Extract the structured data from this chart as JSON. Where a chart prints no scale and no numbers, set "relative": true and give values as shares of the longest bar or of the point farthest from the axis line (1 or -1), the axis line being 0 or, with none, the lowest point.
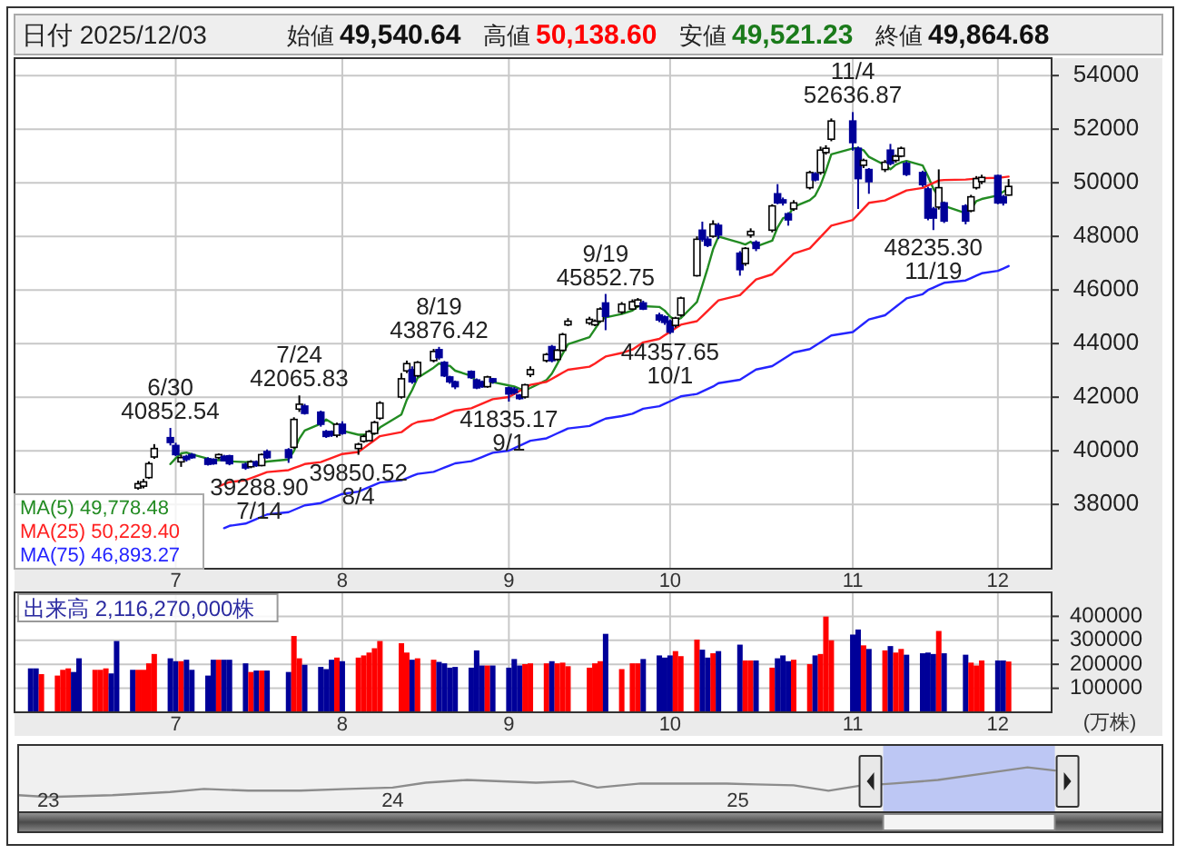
{
  "chart_data": [
    {
      "type": "candlestick",
      "title": "日付 2025/12/03",
      "annotations": [
        "始値 49,540.64",
        "高値 50,138.60",
        "安値 49,521.23",
        "終値 49,864.68",
        {
          "text": "6/30\n40852.54",
          "x": "2025-06-30",
          "y": 40852.54
        },
        {
          "text": "39288.90\n7/14",
          "x": "2025-07-14",
          "y": 39288.9
        },
        {
          "text": "7/24\n42065.83",
          "x": "2025-07-24",
          "y": 42065.83
        },
        {
          "text": "39850.52\n8/4",
          "x": "2025-08-04",
          "y": 39850.52
        },
        {
          "text": "8/19\n43876.42",
          "x": "2025-08-19",
          "y": 43876.42
        },
        {
          "text": "41835.17\n9/1",
          "x": "2025-09-01",
          "y": 41835.17
        },
        {
          "text": "9/19\n45852.75",
          "x": "2025-09-19",
          "y": 45852.75
        },
        {
          "text": "44357.65\n10/1",
          "x": "2025-10-01",
          "y": 44357.65
        },
        {
          "text": "11/4\n52636.87",
          "x": "2025-11-04",
          "y": 52636.87
        },
        {
          "text": "48235.30\n11/19",
          "x": "2025-11-19",
          "y": 48235.3
        }
      ],
      "x": [
        "2025-06-24",
        "2025-06-25",
        "2025-06-26",
        "2025-06-27",
        "2025-06-30",
        "2025-07-01",
        "2025-07-02",
        "2025-07-03",
        "2025-07-04",
        "2025-07-07",
        "2025-07-08",
        "2025-07-09",
        "2025-07-10",
        "2025-07-11",
        "2025-07-14",
        "2025-07-15",
        "2025-07-16",
        "2025-07-17",
        "2025-07-18",
        "2025-07-22",
        "2025-07-23",
        "2025-07-24",
        "2025-07-25",
        "2025-07-28",
        "2025-07-29",
        "2025-07-30",
        "2025-07-31",
        "2025-08-01",
        "2025-08-04",
        "2025-08-05",
        "2025-08-06",
        "2025-08-07",
        "2025-08-08",
        "2025-08-12",
        "2025-08-13",
        "2025-08-14",
        "2025-08-15",
        "2025-08-18",
        "2025-08-19",
        "2025-08-20",
        "2025-08-21",
        "2025-08-22",
        "2025-08-25",
        "2025-08-26",
        "2025-08-27",
        "2025-08-28",
        "2025-08-29",
        "2025-09-01",
        "2025-09-02",
        "2025-09-03",
        "2025-09-04",
        "2025-09-05",
        "2025-09-08",
        "2025-09-09",
        "2025-09-10",
        "2025-09-11",
        "2025-09-12",
        "2025-09-16",
        "2025-09-17",
        "2025-09-18",
        "2025-09-19",
        "2025-09-22",
        "2025-09-24",
        "2025-09-25",
        "2025-09-26",
        "2025-09-29",
        "2025-09-30",
        "2025-10-01",
        "2025-10-02",
        "2025-10-03",
        "2025-10-06",
        "2025-10-07",
        "2025-10-08",
        "2025-10-09",
        "2025-10-10",
        "2025-10-14",
        "2025-10-15",
        "2025-10-16",
        "2025-10-17",
        "2025-10-20",
        "2025-10-21",
        "2025-10-22",
        "2025-10-23",
        "2025-10-24",
        "2025-10-27",
        "2025-10-28",
        "2025-10-29",
        "2025-10-30",
        "2025-10-31",
        "2025-11-04",
        "2025-11-05",
        "2025-11-06",
        "2025-11-07",
        "2025-11-10",
        "2025-11-11",
        "2025-11-12",
        "2025-11-13",
        "2025-11-14",
        "2025-11-17",
        "2025-11-18",
        "2025-11-19",
        "2025-11-20",
        "2025-11-21",
        "2025-11-25",
        "2025-11-26",
        "2025-11-27",
        "2025-11-28",
        "2025-12-01",
        "2025-12-02",
        "2025-12-03"
      ],
      "series": [
        {
          "color": "#000099",
          "colors": [
            "#ffffff",
            "#ffffff",
            "#ffffff",
            "#ffffff",
            "#000099",
            "#000099",
            "#ffffff",
            "#000099",
            "#000099",
            "#000099",
            "#000099",
            "#ffffff",
            "#000099",
            "#000099",
            "#000099",
            "#ffffff",
            "#000099",
            "#ffffff",
            "#000099",
            "#000099",
            "#ffffff",
            "#ffffff",
            "#000099",
            "#000099",
            "#000099",
            "#000099",
            "#ffffff",
            "#000099",
            "#ffffff",
            "#ffffff",
            "#ffffff",
            "#ffffff",
            "#ffffff",
            "#ffffff",
            "#ffffff",
            "#000099",
            "#ffffff",
            "#ffffff",
            "#000099",
            "#000099",
            "#000099",
            "#000099",
            "#000099",
            "#000099",
            "#000099",
            "#ffffff",
            "#000099",
            "#000099",
            "#000099",
            "#000099",
            "#ffffff",
            "#ffffff",
            "#ffffff",
            "#000099",
            "#ffffff",
            "#ffffff",
            "#ffffff",
            "#ffffff",
            "#ffffff",
            "#ffffff",
            "#000099",
            "#ffffff",
            "#ffffff",
            "#ffffff",
            "#000099",
            "#000099",
            "#000099",
            "#000099",
            "#ffffff",
            "#ffffff",
            "#ffffff",
            "#000099",
            "#000099",
            "#ffffff",
            "#000099",
            "#000099",
            "#ffffff",
            "#ffffff",
            "#000099",
            "#ffffff",
            "#000099",
            "#000099",
            "#000099",
            "#ffffff",
            "#ffffff",
            "#000099",
            "#ffffff",
            "#ffffff",
            "#ffffff",
            "#000099",
            "#000099",
            "#ffffff",
            "#000099",
            "#ffffff",
            "#000099",
            "#ffffff",
            "#ffffff",
            "#000099",
            "#000099",
            "#000099",
            "#000099",
            "#ffffff",
            "#000099",
            "#000099",
            "#ffffff",
            "#ffffff",
            "#ffffff",
            "#000099",
            "#000099",
            "#ffffff"
          ],
          "ohlc": [
            [
              38614,
              38885,
              38550,
              38772
            ],
            [
              38681,
              38950,
              38600,
              38840
            ],
            [
              39000,
              39600,
              38950,
              39520
            ],
            [
              39770,
              40250,
              39700,
              40085
            ],
            [
              40491,
              40852.54,
              40200,
              40311
            ],
            [
              40198,
              40300,
              39800,
              39858
            ],
            [
              39587,
              39860,
              39400,
              39745
            ],
            [
              39790,
              39850,
              39600,
              39677
            ],
            [
              39858,
              39920,
              39700,
              39745
            ],
            [
              39700,
              39760,
              39450,
              39497
            ],
            [
              39677,
              39720,
              39480,
              39520
            ],
            [
              39745,
              39900,
              39700,
              39858
            ],
            [
              39790,
              39850,
              39600,
              39632
            ],
            [
              39813,
              39850,
              39460,
              39520
            ],
            [
              39496,
              39560,
              39288.9,
              39360
            ],
            [
              39406,
              39650,
              39350,
              39587
            ],
            [
              39587,
              39640,
              39400,
              39451
            ],
            [
              39451,
              39900,
              39420,
              39858
            ],
            [
              39971,
              40050,
              39700,
              39745
            ],
            [
              40039,
              40100,
              39550,
              39745
            ],
            [
              40130,
              41250,
              40080,
              41170
            ],
            [
              41556,
              42065.83,
              41450,
              41737
            ],
            [
              41669,
              41750,
              41350,
              41397
            ],
            [
              41442,
              41500,
              40900,
              40990
            ],
            [
              40718,
              40780,
              40480,
              40537
            ],
            [
              40718,
              40760,
              40520,
              40582
            ],
            [
              40582,
              41050,
              40500,
              40990
            ],
            [
              40990,
              41100,
              40600,
              40650
            ],
            [
              40085,
              40300,
              39850.52,
              40243
            ],
            [
              40356,
              40600,
              40300,
              40537
            ],
            [
              40379,
              40780,
              40350,
              40718
            ],
            [
              40650,
              41120,
              40600,
              41058
            ],
            [
              41216,
              41850,
              41150,
              41782
            ],
            [
              42008,
              42900,
              41950,
              42687
            ],
            [
              42982,
              43366,
              42900,
              43253
            ],
            [
              43026,
              43150,
              42500,
              42574
            ],
            [
              42800,
              43350,
              42750,
              43298
            ],
            [
              43366,
              43800,
              43300,
              43705
            ],
            [
              43773,
              43876.42,
              43400,
              43479
            ],
            [
              43298,
              43350,
              42750,
              42800
            ],
            [
              42755,
              42800,
              42500,
              42574
            ],
            [
              42574,
              42620,
              42300,
              42393
            ],
            [
              42959,
              43000,
              42680,
              42733
            ],
            [
              42642,
              42700,
              42300,
              42348
            ],
            [
              42574,
              42620,
              42350,
              42393
            ],
            [
              42393,
              42800,
              42350,
              42755
            ],
            [
              42687,
              42720,
              42500,
              42574
            ],
            [
              42348,
              42400,
              41835.17,
              42121
            ],
            [
              42302,
              42380,
              42100,
              42166
            ],
            [
              42076,
              42120,
              41900,
              41950
            ],
            [
              42008,
              42500,
              41950,
              42461
            ],
            [
              42846,
              43150,
              42750,
              43026
            ],
            [
              43366,
              43650,
              43300,
              43592
            ],
            [
              43886,
              43950,
              43300,
              43366
            ],
            [
              43411,
              43800,
              43350,
              43750
            ],
            [
              43750,
              44400,
              43700,
              44339
            ],
            [
              44701,
              44950,
              44650,
              44837
            ],
            [
              44769,
              45000,
              44700,
              44905
            ],
            [
              44701,
              44900,
              44650,
              44837
            ],
            [
              44837,
              45350,
              44780,
              45290
            ],
            [
              45516,
              45852.75,
              44500,
              45018
            ],
            [
              45177,
              45550,
              45100,
              45471
            ],
            [
              45290,
              45650,
              45250,
              45561
            ],
            [
              45403,
              45700,
              45350,
              45629
            ],
            [
              45516,
              45600,
              45250,
              45290
            ],
            [
              45063,
              45150,
              44800,
              44882
            ],
            [
              44995,
              45050,
              44700,
              44792
            ],
            [
              44837,
              44900,
              44357.65,
              44430
            ],
            [
              44679,
              45000,
              44600,
              44950
            ],
            [
              45063,
              45750,
              45000,
              45697
            ],
            [
              46534,
              48000,
              46500,
              47892
            ],
            [
              48232,
              48550,
              47800,
              47892
            ],
            [
              47892,
              48000,
              47600,
              47666
            ],
            [
              48005,
              48600,
              47950,
              48458
            ],
            [
              48413,
              48500,
              47900,
              48050
            ],
            [
              47371,
              47450,
              46534,
              46760
            ],
            [
              46987,
              47600,
              46900,
              47552
            ],
            [
              48050,
              48300,
              47950,
              48186
            ],
            [
              47779,
              47850,
              47450,
              47552
            ],
            [
              48232,
              49200,
              48150,
              49137
            ],
            [
              49589,
              49950,
              49200,
              49250
            ],
            [
              49363,
              49450,
              49150,
              49250
            ],
            [
              48843,
              48900,
              48400,
              48616
            ],
            [
              49024,
              49350,
              48950,
              49250
            ],
            [
              49816,
              50450,
              49750,
              50381
            ],
            [
              50336,
              50400,
              50050,
              50110
            ],
            [
              50381,
              51350,
              50300,
              51218
            ],
            [
              51128,
              51400,
              51050,
              51286
            ],
            [
              51626,
              52400,
              51550,
              52305
            ],
            [
              52305,
              52636.87,
              51200,
              51500
            ],
            [
              51286,
              51350,
              49024,
              50155
            ],
            [
              50653,
              50900,
              50550,
              50834
            ],
            [
              50494,
              50550,
              49589,
              50042
            ],
            [
              50494,
              50850,
              50400,
              50766
            ],
            [
              51218,
              51450,
              50650,
              50721
            ],
            [
              50834,
              51050,
              50750,
              50992
            ],
            [
              50992,
              51350,
              50950,
              51286
            ],
            [
              50721,
              50800,
              50250,
              50313
            ],
            [
              50381,
              50450,
              49850,
              49929
            ],
            [
              49770,
              49850,
              48600,
              48684
            ],
            [
              49024,
              49100,
              48235.3,
              48684
            ],
            [
              49092,
              50500,
              49000,
              49816
            ],
            [
              49250,
              49300,
              48500,
              48571
            ],
            [
              49137,
              49200,
              48450,
              48571
            ],
            [
              48955,
              49550,
              48900,
              49476
            ],
            [
              49816,
              50250,
              49750,
              50155
            ],
            [
              50042,
              50300,
              49950,
              50200
            ],
            [
              50268,
              50300,
              49200,
              49250
            ],
            [
              49476,
              49550,
              49150,
              49250
            ],
            [
              49540.64,
              50138.6,
              49521.23,
              49864.68
            ]
          ]
        },
        {
          "type": "line",
          "name": "MA(5) 49,778.48",
          "color": "#228b22",
          "values": [
            null,
            null,
            null,
            null,
            39506,
            39723,
            39904,
            39935,
            39867,
            39704,
            39637,
            39659,
            39650,
            39605,
            39578,
            39591,
            39510,
            39555,
            39600,
            39677,
            39994,
            40451,
            40759,
            41008,
            41166,
            41049,
            40899,
            40750,
            40600,
            40600,
            40628,
            40641,
            40868,
            41356,
            41900,
            42271,
            42719,
            43103,
            43262,
            43171,
            43171,
            42990,
            42796,
            42570,
            42488,
            42524,
            42561,
            42438,
            42402,
            42313,
            42254,
            42345,
            42639,
            42879,
            43239,
            43615,
            43977,
            44239,
            44534,
            44842,
            44977,
            45104,
            45235,
            45394,
            45394,
            45367,
            45231,
            45005,
            44869,
            44950,
            45552,
            46172,
            46819,
            47521,
            47992,
            47765,
            47697,
            47801,
            47620,
            47837,
            48335,
            48675,
            48761,
            49101,
            49349,
            49521,
            49915,
            50449,
            51060,
            51284,
            51293,
            51216,
            50967,
            50659,
            50504,
            50671,
            50761,
            50816,
            50648,
            50241,
            49779,
            49485,
            49137,
            48865,
            49024,
            49318,
            49395,
            49530,
            49666,
            49778.48
          ]
        },
        {
          "type": "line",
          "name": "MA(25) 50,229.40",
          "color": "#ff2020",
          "values": [
            null,
            null,
            null,
            null,
            null,
            null,
            null,
            null,
            null,
            null,
            null,
            38680,
            38755,
            38830,
            38905,
            38980,
            39055,
            39130,
            39205,
            39280,
            39355,
            39430,
            39505,
            39580,
            39655,
            39730,
            39805,
            39880,
            39955,
            40103,
            40251,
            40399,
            40547,
            40695,
            40843,
            40990,
            41075,
            41160,
            41245,
            41330,
            41415,
            41500,
            41585,
            41670,
            41755,
            41840,
            41925,
            42008,
            42121,
            42234,
            42347,
            42460,
            42573,
            42686,
            42799,
            42912,
            43025,
            43138,
            43253,
            43385,
            43517,
            43649,
            43781,
            43913,
            44045,
            44177,
            44309,
            44441,
            44573,
            44705,
            44837,
            45031,
            45225,
            45419,
            45613,
            45807,
            46001,
            46195,
            46389,
            46583,
            46777,
            46971,
            47165,
            47359,
            47553,
            47765,
            47977,
            48189,
            48401,
            48613,
            48825,
            49037,
            49250,
            49343,
            49436,
            49529,
            49622,
            49715,
            49808,
            49901,
            49994,
            50087,
            50105,
            50122,
            50139,
            50155,
            50170,
            50185,
            50205,
            50229.4
          ]
        },
        {
          "type": "line",
          "name": "MA(75) 46,893.27",
          "color": "#2424ff",
          "values": [
            null,
            null,
            null,
            null,
            null,
            null,
            null,
            null,
            null,
            null,
            null,
            null,
            37115,
            37200,
            37285,
            37370,
            37455,
            37540,
            37625,
            37710,
            37795,
            37880,
            37965,
            38050,
            38135,
            38220,
            38305,
            38390,
            38475,
            38560,
            38645,
            38730,
            38815,
            38900,
            38979,
            39058,
            39137,
            39216,
            39295,
            39374,
            39453,
            39532,
            39611,
            39690,
            39769,
            39848,
            39927,
            40006,
            40098,
            40190,
            40282,
            40374,
            40466,
            40558,
            40650,
            40742,
            40834,
            40926,
            41018,
            41110,
            41202,
            41294,
            41386,
            41478,
            41570,
            41662,
            41754,
            41846,
            41938,
            42030,
            42122,
            42214,
            42306,
            42398,
            42525,
            42652,
            42779,
            42906,
            43033,
            43160,
            43287,
            43414,
            43541,
            43668,
            43795,
            43922,
            44049,
            44176,
            44303,
            44430,
            44587,
            44744,
            44901,
            45058,
            45215,
            45372,
            45529,
            45686,
            45843,
            46000,
            46089,
            46178,
            46267,
            46356,
            46445,
            46534,
            46623,
            46712,
            46801,
            46893.27
          ]
        }
      ],
      "ylim": [
        35600,
        54650
      ],
      "yticks": [
        38000,
        40000,
        42000,
        44000,
        46000,
        48000,
        50000,
        52000,
        54000
      ],
      "xlim": [
        "2025-06-01",
        "2025-12-11"
      ],
      "xticks": [
        {
          "value": "2025-07-01",
          "label": "7"
        },
        {
          "value": "2025-08-01",
          "label": "8"
        },
        {
          "value": "2025-09-01",
          "label": "9"
        },
        {
          "value": "2025-10-01",
          "label": "10"
        },
        {
          "value": "2025-11-04",
          "label": "11"
        },
        {
          "value": "2025-12-01",
          "label": "12"
        }
      ],
      "grid": true,
      "legend": "bottom left"
    },
    {
      "type": "bar",
      "title": "出来高 2,116,270,000株",
      "ylabel": "(万株)",
      "x": [
        "2025-06-04",
        "2025-06-05",
        "2025-06-06",
        "2025-06-09",
        "2025-06-10",
        "2025-06-11",
        "2025-06-12",
        "2025-06-13",
        "2025-06-16",
        "2025-06-17",
        "2025-06-18",
        "2025-06-19",
        "2025-06-20",
        "2025-06-23",
        "2025-06-24",
        "2025-06-25",
        "2025-06-26",
        "2025-06-27",
        "2025-06-30",
        "2025-07-01",
        "2025-07-02",
        "2025-07-03",
        "2025-07-04",
        "2025-07-07",
        "2025-07-08",
        "2025-07-09",
        "2025-07-10",
        "2025-07-11",
        "2025-07-14",
        "2025-07-15",
        "2025-07-16",
        "2025-07-17",
        "2025-07-18",
        "2025-07-22",
        "2025-07-23",
        "2025-07-24",
        "2025-07-25",
        "2025-07-28",
        "2025-07-29",
        "2025-07-30",
        "2025-07-31",
        "2025-08-01",
        "2025-08-04",
        "2025-08-05",
        "2025-08-06",
        "2025-08-07",
        "2025-08-08",
        "2025-08-12",
        "2025-08-13",
        "2025-08-14",
        "2025-08-15",
        "2025-08-18",
        "2025-08-19",
        "2025-08-20",
        "2025-08-21",
        "2025-08-22",
        "2025-08-25",
        "2025-08-26",
        "2025-08-27",
        "2025-08-28",
        "2025-08-29",
        "2025-09-01",
        "2025-09-02",
        "2025-09-03",
        "2025-09-04",
        "2025-09-05",
        "2025-09-08",
        "2025-09-09",
        "2025-09-10",
        "2025-09-11",
        "2025-09-12",
        "2025-09-16",
        "2025-09-17",
        "2025-09-18",
        "2025-09-19",
        "2025-09-22",
        "2025-09-24",
        "2025-09-25",
        "2025-09-26",
        "2025-09-29",
        "2025-09-30",
        "2025-10-01",
        "2025-10-02",
        "2025-10-03",
        "2025-10-06",
        "2025-10-07",
        "2025-10-08",
        "2025-10-09",
        "2025-10-10",
        "2025-10-14",
        "2025-10-15",
        "2025-10-16",
        "2025-10-17",
        "2025-10-20",
        "2025-10-21",
        "2025-10-22",
        "2025-10-23",
        "2025-10-24",
        "2025-10-27",
        "2025-10-28",
        "2025-10-29",
        "2025-10-30",
        "2025-10-31",
        "2025-11-04",
        "2025-11-05",
        "2025-11-06",
        "2025-11-07",
        "2025-11-10",
        "2025-11-11",
        "2025-11-12",
        "2025-11-13",
        "2025-11-14",
        "2025-11-17",
        "2025-11-18",
        "2025-11-19",
        "2025-11-20",
        "2025-11-21",
        "2025-11-25",
        "2025-11-26",
        "2025-11-27",
        "2025-11-28",
        "2025-12-01",
        "2025-12-02",
        "2025-12-03"
      ],
      "values": [
        183000,
        183000,
        159000,
        153000,
        177000,
        183000,
        168000,
        225000,
        177000,
        177000,
        183000,
        162000,
        297000,
        177000,
        177000,
        177000,
        204000,
        243000,
        225000,
        213000,
        213000,
        219000,
        177000,
        153000,
        219000,
        219000,
        219000,
        219000,
        204000,
        168000,
        174000,
        174000,
        174000,
        168000,
        318000,
        225000,
        198000,
        189000,
        180000,
        219000,
        228000,
        213000,
        228000,
        237000,
        249000,
        267000,
        297000,
        288000,
        249000,
        219000,
        225000,
        219000,
        210000,
        204000,
        186000,
        189000,
        186000,
        258000,
        195000,
        195000,
        195000,
        186000,
        222000,
        195000,
        201000,
        204000,
        204000,
        213000,
        204000,
        207000,
        192000,
        186000,
        204000,
        213000,
        327000,
        180000,
        204000,
        204000,
        222000,
        237000,
        228000,
        237000,
        255000,
        234000,
        303000,
        261000,
        228000,
        246000,
        255000,
        282000,
        216000,
        216000,
        216000,
        186000,
        225000,
        237000,
        213000,
        219000,
        201000,
        237000,
        243000,
        399000,
        300000,
        324000,
        345000,
        279000,
        264000,
        258000,
        276000,
        249000,
        264000,
        240000,
        246000,
        249000,
        243000,
        339000,
        246000,
        240000,
        207000,
        195000,
        216000,
        216000,
        216000,
        211627
      ],
      "colors": [
        "#000099",
        "#000099",
        "#ff0000",
        "#ff0000",
        "#ff0000",
        "#ff0000",
        "#000099",
        "#000099",
        "#ff0000",
        "#ff0000",
        "#ff0000",
        "#000099",
        "#000099",
        "#000099",
        "#ff0000",
        "#ff0000",
        "#ff0000",
        "#ff0000",
        "#000099",
        "#000099",
        "#ff0000",
        "#000099",
        "#000099",
        "#000099",
        "#000099",
        "#ff0000",
        "#000099",
        "#000099",
        "#000099",
        "#ff0000",
        "#000099",
        "#ff0000",
        "#000099",
        "#000099",
        "#ff0000",
        "#ff0000",
        "#000099",
        "#000099",
        "#000099",
        "#000099",
        "#ff0000",
        "#000099",
        "#ff0000",
        "#ff0000",
        "#ff0000",
        "#ff0000",
        "#ff0000",
        "#ff0000",
        "#ff0000",
        "#000099",
        "#ff0000",
        "#ff0000",
        "#000099",
        "#000099",
        "#000099",
        "#000099",
        "#000099",
        "#000099",
        "#000099",
        "#ff0000",
        "#000099",
        "#000099",
        "#000099",
        "#000099",
        "#ff0000",
        "#ff0000",
        "#ff0000",
        "#000099",
        "#ff0000",
        "#ff0000",
        "#ff0000",
        "#ff0000",
        "#ff0000",
        "#ff0000",
        "#000099",
        "#ff0000",
        "#ff0000",
        "#ff0000",
        "#000099",
        "#000099",
        "#000099",
        "#000099",
        "#ff0000",
        "#ff0000",
        "#ff0000",
        "#000099",
        "#000099",
        "#ff0000",
        "#000099",
        "#000099",
        "#ff0000",
        "#ff0000",
        "#000099",
        "#ff0000",
        "#000099",
        "#000099",
        "#000099",
        "#ff0000",
        "#ff0000",
        "#000099",
        "#ff0000",
        "#ff0000",
        "#ff0000",
        "#000099",
        "#000099",
        "#ff0000",
        "#000099",
        "#ff0000",
        "#000099",
        "#ff0000",
        "#ff0000",
        "#000099",
        "#000099",
        "#000099",
        "#000099",
        "#ff0000",
        "#000099",
        "#000099",
        "#ff0000",
        "#ff0000",
        "#ff0000",
        "#000099",
        "#000099",
        "#ff0000"
      ],
      "ylim": [
        0,
        500000
      ],
      "yticks": [
        100000,
        200000,
        300000,
        400000
      ],
      "xlim": [
        "2025-06-01",
        "2025-12-11"
      ],
      "xticks": [
        {
          "value": "2025-07-01",
          "label": "7"
        },
        {
          "value": "2025-08-01",
          "label": "8"
        },
        {
          "value": "2025-09-01",
          "label": "9"
        },
        {
          "value": "2025-10-01",
          "label": "10"
        },
        {
          "value": "2025-11-04",
          "label": "11"
        },
        {
          "value": "2025-12-01",
          "label": "12"
        }
      ],
      "grid": true
    },
    {
      "type": "line",
      "relative": true,
      "color": "#8c8c8c",
      "x": [
        "2022-11-30",
        "2023-01-01",
        "2023-03-10",
        "2023-05-10",
        "2023-06-15",
        "2023-08-01",
        "2023-09-25",
        "2023-11-15",
        "2024-01-01",
        "2024-02-05",
        "2024-03-20",
        "2024-06-01",
        "2024-07-10",
        "2024-08-05",
        "2024-09-20",
        "2024-12-20",
        "2025-01-20",
        "2025-03-01",
        "2025-04-07",
        "2025-05-10",
        "2025-06-15",
        "2025-08-01",
        "2025-10-01",
        "2025-11-04",
        "2025-12-03"
      ],
      "values": [
        0.38,
        0.34,
        0.38,
        0.45,
        0.52,
        0.48,
        0.48,
        0.52,
        0.55,
        0.66,
        0.72,
        0.66,
        0.69,
        0.55,
        0.64,
        0.64,
        0.62,
        0.6,
        0.48,
        0.59,
        0.64,
        0.72,
        0.9,
        1,
        0.93
      ],
      "xlim": [
        "2022-11-30",
        "2026-03-27"
      ],
      "xticks": [
        {
          "value": "2023-01-01",
          "label": "23"
        },
        {
          "value": "2024-01-01",
          "label": "24"
        },
        {
          "value": "2025-01-01",
          "label": "25"
        }
      ],
      "bands": [
        {
          "axis": "x",
          "from": "2025-06-04",
          "to": "2025-12-03",
          "color": "#b4c0f5"
        }
      ]
    }
  ]
}
